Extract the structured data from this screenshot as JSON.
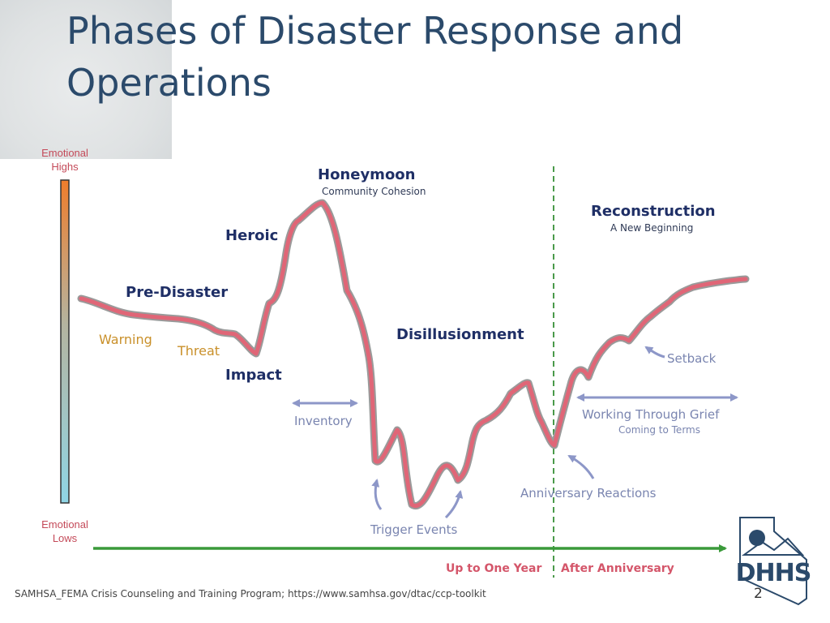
{
  "slide": {
    "title_line1": "Phases of Disaster Response and",
    "title_line2": "Operations",
    "source": "SAMHSA_FEMA Crisis Counseling and Training Program; https://www.samhsa.gov/dtac/ccp-toolkit",
    "page_number": "2"
  },
  "scale": {
    "top_line1": "Emotional",
    "top_line2": "Highs",
    "bottom_line1": "Emotional",
    "bottom_line2": "Lows"
  },
  "phases": {
    "pre_disaster": "Pre-Disaster",
    "warning": "Warning",
    "threat": "Threat",
    "impact": "Impact",
    "heroic": "Heroic",
    "honeymoon": "Honeymoon",
    "honeymoon_sub": "Community Cohesion",
    "inventory": "Inventory",
    "disillusionment": "Disillusionment",
    "trigger_events": "Trigger Events",
    "anniversary_reactions": "Anniversary Reactions",
    "reconstruction": "Reconstruction",
    "reconstruction_sub": "A New Beginning",
    "setback": "Setback",
    "working_through_grief": "Working Through Grief",
    "coming_to_terms": "Coming to Terms"
  },
  "timeline": {
    "up_to_one_year": "Up to One Year",
    "after_anniversary": "After Anniversary"
  },
  "logo": {
    "text": "DHHS"
  },
  "colors": {
    "title": "#2b4a6b",
    "curve": "#e06677",
    "curve_outline": "#9a9a9a",
    "timeline_arrow": "#3a9a3a",
    "divider": "#4a9a4a",
    "phase_label": "#1f2f66",
    "annotation": "#7a85b0",
    "warning_threat": "#c9902a",
    "timeline_label": "#d4566a"
  }
}
